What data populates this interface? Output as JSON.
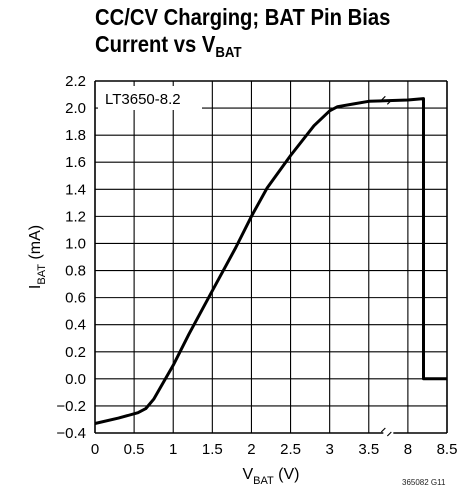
{
  "chart_data": {
    "type": "line",
    "title_line1": "CC/CV Charging; BAT Pin Bias",
    "title_line2_prefix": "Current vs V",
    "title_line2_sub": "BAT",
    "annotation": "LT3650-8.2",
    "xlabel_main": "V",
    "xlabel_sub": "BAT",
    "xlabel_unit": " (V)",
    "ylabel_main": "I",
    "ylabel_sub": "BAT",
    "ylabel_unit": " (mA)",
    "x_tick_labels": [
      "0",
      "0.5",
      "1",
      "1.5",
      "2",
      "2.5",
      "3",
      "3.5",
      "8",
      "8.5"
    ],
    "y_tick_labels": [
      "2.2",
      "2.0",
      "1.8",
      "1.6",
      "1.4",
      "1.2",
      "1.0",
      "0.8",
      "0.6",
      "0.4",
      "0.2",
      "0.0",
      "−0.2",
      "−0.4"
    ],
    "ylim": [
      -0.4,
      2.2
    ],
    "x_axis_break": "between 3.5 V and 8 V",
    "grid": true,
    "series": [
      {
        "points": [
          [
            0,
            -0.33
          ],
          [
            0.3,
            -0.29
          ],
          [
            0.55,
            -0.25
          ],
          [
            0.65,
            -0.22
          ],
          [
            0.75,
            -0.15
          ],
          [
            0.85,
            -0.05
          ],
          [
            1.0,
            0.1
          ],
          [
            1.2,
            0.33
          ],
          [
            1.5,
            0.65
          ],
          [
            1.8,
            0.97
          ],
          [
            2.0,
            1.2
          ],
          [
            2.2,
            1.41
          ],
          [
            2.5,
            1.65
          ],
          [
            2.8,
            1.87
          ],
          [
            3.0,
            1.98
          ],
          [
            3.1,
            2.01
          ],
          [
            3.3,
            2.03
          ],
          [
            3.5,
            2.05
          ],
          [
            8.0,
            2.06
          ],
          [
            8.2,
            2.07
          ],
          [
            8.2,
            0.0
          ],
          [
            8.5,
            0.0
          ]
        ]
      }
    ]
  },
  "figure_id": "365082 G11"
}
